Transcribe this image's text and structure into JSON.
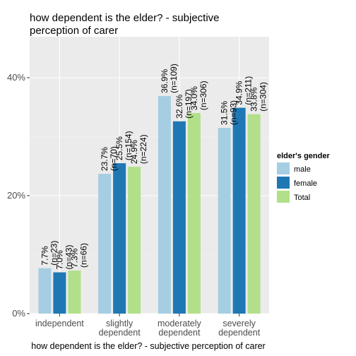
{
  "chart_data": {
    "type": "bar",
    "title_lines": [
      "how dependent is the elder? - subjective",
      "perception of carer"
    ],
    "xlabel": "how dependent is the elder? - subjective perception of carer",
    "ylabel": "",
    "ylim": [
      0,
      0.4
    ],
    "yticks": [
      {
        "value": 0.0,
        "label": "0%"
      },
      {
        "value": 0.2,
        "label": "20%"
      },
      {
        "value": 0.4,
        "label": "40%"
      }
    ],
    "grid": true,
    "legend_position": "right",
    "legend_title": "elder's gender",
    "categories": [
      [
        "independent"
      ],
      [
        "slightly",
        "dependent"
      ],
      [
        "moderately",
        "dependent"
      ],
      [
        "severely",
        "dependent"
      ]
    ],
    "series": [
      {
        "name": "male",
        "color": "#a6cee3",
        "values": [
          0.077,
          0.237,
          0.369,
          0.315
        ],
        "labels": [
          "7.7%",
          "23.7%",
          "36.9%",
          "31.5%"
        ],
        "counts": [
          "(n=23)",
          "(n=70)",
          "(n=109)",
          "(n=93)"
        ]
      },
      {
        "name": "female",
        "color": "#1f78b4",
        "values": [
          0.07,
          0.255,
          0.326,
          0.349
        ],
        "labels": [
          "7.0%",
          "25.5%",
          "32.6%",
          "34.9%"
        ],
        "counts": [
          "(n=43)",
          "(n=154)",
          "(n=197)",
          "(n=211)"
        ]
      },
      {
        "name": "Total",
        "color": "#b2df8a",
        "values": [
          0.073,
          0.249,
          0.34,
          0.338
        ],
        "labels": [
          "7.3%",
          "24.9%",
          "34.0%",
          "33.8%"
        ],
        "counts": [
          "(n=66)",
          "(n=224)",
          "(n=306)",
          "(n=304)"
        ]
      }
    ]
  }
}
